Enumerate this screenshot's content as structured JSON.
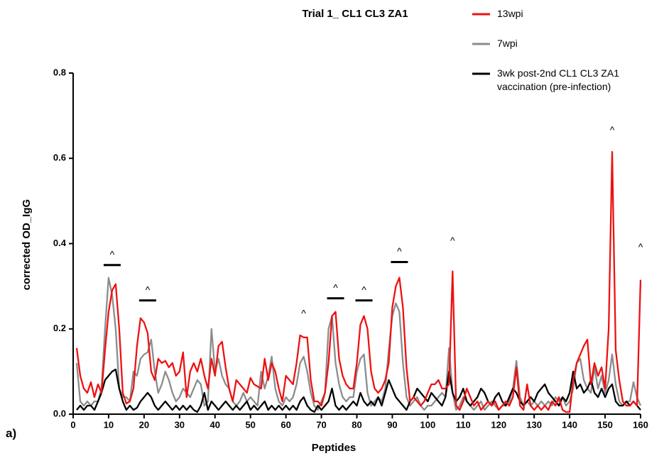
{
  "chart_data": {
    "type": "line",
    "title": "Trial 1_  CL1 CL3 ZA1",
    "x_label": "Peptides",
    "y_label": "corrected OD_IgG",
    "panel_label": "a)",
    "xlim": [
      0,
      160
    ],
    "xticks": [
      0,
      10,
      20,
      30,
      40,
      50,
      60,
      70,
      80,
      90,
      100,
      110,
      120,
      130,
      140,
      150,
      160
    ],
    "ylim": [
      0,
      0.8
    ],
    "yticks": [
      {
        "value": 0,
        "label": "0.0"
      },
      {
        "value": 0.2,
        "label": "0.2"
      },
      {
        "value": 0.4,
        "label": "0.4"
      },
      {
        "value": 0.6,
        "label": "0.6"
      },
      {
        "value": 0.8,
        "label": "0.8"
      }
    ],
    "x": [
      1,
      2,
      3,
      4,
      5,
      6,
      7,
      8,
      9,
      10,
      11,
      12,
      13,
      14,
      15,
      16,
      17,
      18,
      19,
      20,
      21,
      22,
      23,
      24,
      25,
      26,
      27,
      28,
      29,
      30,
      31,
      32,
      33,
      34,
      35,
      36,
      37,
      38,
      39,
      40,
      41,
      42,
      43,
      44,
      45,
      46,
      47,
      48,
      49,
      50,
      51,
      52,
      53,
      54,
      55,
      56,
      57,
      58,
      59,
      60,
      61,
      62,
      63,
      64,
      65,
      66,
      67,
      68,
      69,
      70,
      71,
      72,
      73,
      74,
      75,
      76,
      77,
      78,
      79,
      80,
      81,
      82,
      83,
      84,
      85,
      86,
      87,
      88,
      89,
      90,
      91,
      92,
      93,
      94,
      95,
      96,
      97,
      98,
      99,
      100,
      101,
      102,
      103,
      104,
      105,
      106,
      107,
      108,
      109,
      110,
      111,
      112,
      113,
      114,
      115,
      116,
      117,
      118,
      119,
      120,
      121,
      122,
      123,
      124,
      125,
      126,
      127,
      128,
      129,
      130,
      131,
      132,
      133,
      134,
      135,
      136,
      137,
      138,
      139,
      140,
      141,
      142,
      143,
      144,
      145,
      146,
      147,
      148,
      149,
      150,
      151,
      152,
      153,
      154,
      155,
      156,
      157,
      158,
      159,
      160
    ],
    "series": [
      {
        "name": "7wpi",
        "color": "#8c8c8c",
        "values": [
          0.12,
          0.03,
          0.02,
          0.03,
          0.02,
          0.03,
          0.03,
          0.06,
          0.2,
          0.32,
          0.28,
          0.2,
          0.06,
          0.04,
          0.04,
          0.03,
          0.1,
          0.09,
          0.13,
          0.14,
          0.145,
          0.175,
          0.1,
          0.05,
          0.07,
          0.1,
          0.08,
          0.05,
          0.03,
          0.04,
          0.06,
          0.05,
          0.04,
          0.06,
          0.08,
          0.07,
          0.02,
          0.03,
          0.2,
          0.1,
          0.13,
          0.09,
          0.07,
          0.06,
          0.03,
          0.02,
          0.03,
          0.05,
          0.03,
          0.04,
          0.03,
          0.02,
          0.1,
          0.06,
          0.09,
          0.135,
          0.06,
          0.03,
          0.02,
          0.04,
          0.03,
          0.04,
          0.07,
          0.12,
          0.135,
          0.1,
          0.05,
          0.02,
          0.01,
          0.03,
          0.05,
          0.2,
          0.23,
          0.12,
          0.07,
          0.04,
          0.03,
          0.04,
          0.04,
          0.1,
          0.13,
          0.14,
          0.05,
          0.02,
          0.03,
          0.04,
          0.03,
          0.06,
          0.15,
          0.23,
          0.26,
          0.24,
          0.12,
          0.04,
          0.02,
          0.03,
          0.04,
          0.02,
          0.01,
          0.02,
          0.02,
          0.03,
          0.04,
          0.05,
          0.04,
          0.155,
          0.05,
          0.01,
          0.02,
          0.04,
          0.03,
          0.02,
          0.01,
          0.02,
          0.03,
          0.01,
          0.02,
          0.03,
          0.02,
          0.01,
          0.02,
          0.02,
          0.03,
          0.06,
          0.125,
          0.04,
          0.02,
          0.03,
          0.02,
          0.03,
          0.02,
          0.03,
          0.02,
          0.03,
          0.02,
          0.04,
          0.03,
          0.04,
          0.02,
          0.03,
          0.06,
          0.12,
          0.13,
          0.08,
          0.06,
          0.05,
          0.11,
          0.06,
          0.09,
          0.05,
          0.08,
          0.14,
          0.07,
          0.03,
          0.02,
          0.03,
          0.03,
          0.075,
          0.04,
          0.02
        ]
      },
      {
        "name": "3wk post-2nd CL1 CL3 ZA1 vaccination (pre-infection)",
        "color": "#000000",
        "values": [
          0.01,
          0.02,
          0.01,
          0.02,
          0.02,
          0.01,
          0.03,
          0.05,
          0.08,
          0.09,
          0.1,
          0.105,
          0.06,
          0.03,
          0.01,
          0.02,
          0.01,
          0.015,
          0.03,
          0.04,
          0.05,
          0.04,
          0.02,
          0.01,
          0.02,
          0.03,
          0.02,
          0.01,
          0.02,
          0.01,
          0.02,
          0.01,
          0.02,
          0.01,
          0.005,
          0.02,
          0.05,
          0.01,
          0.03,
          0.02,
          0.01,
          0.02,
          0.03,
          0.02,
          0.01,
          0.02,
          0.01,
          0.02,
          0.03,
          0.01,
          0.02,
          0.01,
          0.02,
          0.03,
          0.01,
          0.02,
          0.01,
          0.02,
          0.01,
          0.02,
          0.01,
          0.02,
          0.01,
          0.03,
          0.04,
          0.02,
          0.01,
          0.005,
          0.02,
          0.01,
          0.02,
          0.03,
          0.06,
          0.02,
          0.01,
          0.02,
          0.01,
          0.02,
          0.03,
          0.02,
          0.05,
          0.03,
          0.02,
          0.03,
          0.02,
          0.04,
          0.02,
          0.05,
          0.08,
          0.06,
          0.04,
          0.03,
          0.02,
          0.01,
          0.03,
          0.04,
          0.06,
          0.05,
          0.04,
          0.03,
          0.05,
          0.04,
          0.03,
          0.02,
          0.04,
          0.1,
          0.05,
          0.03,
          0.04,
          0.06,
          0.03,
          0.02,
          0.03,
          0.04,
          0.06,
          0.05,
          0.03,
          0.02,
          0.04,
          0.05,
          0.03,
          0.02,
          0.04,
          0.06,
          0.05,
          0.03,
          0.02,
          0.03,
          0.04,
          0.03,
          0.05,
          0.06,
          0.07,
          0.05,
          0.04,
          0.03,
          0.02,
          0.04,
          0.03,
          0.05,
          0.1,
          0.06,
          0.07,
          0.05,
          0.06,
          0.08,
          0.05,
          0.04,
          0.06,
          0.04,
          0.06,
          0.07,
          0.03,
          0.02,
          0.02,
          0.03,
          0.02,
          0.03,
          0.02,
          0.01
        ]
      },
      {
        "name": "13wpi",
        "color": "#ee1111",
        "values": [
          0.155,
          0.09,
          0.06,
          0.05,
          0.075,
          0.04,
          0.07,
          0.05,
          0.15,
          0.24,
          0.29,
          0.305,
          0.2,
          0.05,
          0.025,
          0.03,
          0.06,
          0.16,
          0.225,
          0.215,
          0.19,
          0.1,
          0.08,
          0.13,
          0.12,
          0.125,
          0.11,
          0.12,
          0.09,
          0.1,
          0.145,
          0.04,
          0.1,
          0.12,
          0.1,
          0.13,
          0.09,
          0.06,
          0.13,
          0.09,
          0.16,
          0.17,
          0.11,
          0.06,
          0.03,
          0.08,
          0.07,
          0.06,
          0.05,
          0.085,
          0.07,
          0.065,
          0.06,
          0.13,
          0.08,
          0.12,
          0.1,
          0.06,
          0.03,
          0.09,
          0.08,
          0.07,
          0.12,
          0.185,
          0.18,
          0.18,
          0.08,
          0.03,
          0.03,
          0.02,
          0.05,
          0.12,
          0.23,
          0.24,
          0.13,
          0.09,
          0.07,
          0.06,
          0.06,
          0.12,
          0.21,
          0.23,
          0.2,
          0.1,
          0.06,
          0.05,
          0.06,
          0.08,
          0.12,
          0.25,
          0.3,
          0.32,
          0.25,
          0.11,
          0.03,
          0.04,
          0.03,
          0.02,
          0.03,
          0.05,
          0.07,
          0.07,
          0.08,
          0.06,
          0.06,
          0.07,
          0.335,
          0.02,
          0.01,
          0.03,
          0.06,
          0.04,
          0.02,
          0.03,
          0.01,
          0.02,
          0.03,
          0.02,
          0.03,
          0.01,
          0.02,
          0.03,
          0.02,
          0.04,
          0.11,
          0.02,
          0.01,
          0.07,
          0.02,
          0.01,
          0.02,
          0.01,
          0.02,
          0.01,
          0.03,
          0.02,
          0.04,
          0.01,
          0.005,
          0.005,
          0.08,
          0.12,
          0.14,
          0.16,
          0.175,
          0.07,
          0.12,
          0.09,
          0.11,
          0.06,
          0.2,
          0.615,
          0.15,
          0.08,
          0.03,
          0.02,
          0.02,
          0.03,
          0.02,
          0.315
        ]
      }
    ],
    "legend_order": [
      2,
      0,
      1
    ],
    "annotations": [
      {
        "x": 11,
        "y": 0.373,
        "label": "^",
        "bar": true
      },
      {
        "x": 21,
        "y": 0.29,
        "label": "^",
        "bar": true
      },
      {
        "x": 65,
        "y": 0.235,
        "label": "^",
        "bar": false
      },
      {
        "x": 74,
        "y": 0.295,
        "label": "^",
        "bar": true
      },
      {
        "x": 82,
        "y": 0.29,
        "label": "^",
        "bar": true
      },
      {
        "x": 92,
        "y": 0.38,
        "label": "^",
        "bar": true
      },
      {
        "x": 107,
        "y": 0.405,
        "label": "^",
        "bar": false
      },
      {
        "x": 152,
        "y": 0.665,
        "label": "^",
        "bar": false
      },
      {
        "x": 160,
        "y": 0.39,
        "label": "^",
        "bar": false
      }
    ]
  }
}
